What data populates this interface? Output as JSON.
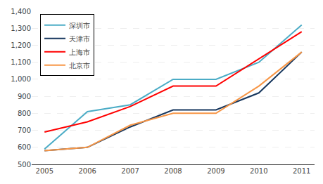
{
  "chart_data": {
    "type": "line",
    "x": [
      2005,
      2006,
      2007,
      2008,
      2009,
      2010,
      2011
    ],
    "series": [
      {
        "name": "深圳市",
        "color": "#4BACC6",
        "values": [
          590,
          810,
          850,
          1000,
          1000,
          1100,
          1320
        ]
      },
      {
        "name": "天津市",
        "color": "#17375E",
        "values": [
          580,
          600,
          720,
          820,
          820,
          920,
          1160
        ]
      },
      {
        "name": "上海市",
        "color": "#FF0000",
        "values": [
          690,
          750,
          840,
          960,
          960,
          1120,
          1280
        ]
      },
      {
        "name": "北京市",
        "color": "#F79646",
        "values": [
          580,
          600,
          730,
          800,
          800,
          960,
          1160
        ]
      }
    ],
    "xlim": [
      2004.7,
      2011.3
    ],
    "xticks": [
      2005,
      2006,
      2007,
      2008,
      2009,
      2010,
      2011
    ],
    "ylim": [
      500,
      1400
    ],
    "yticks": [
      500,
      600,
      700,
      800,
      900,
      {
        "value": 1000,
        "label": "1,000"
      },
      {
        "value": 1100,
        "label": "1,100"
      },
      {
        "value": 1200,
        "label": "1,200"
      },
      {
        "value": 1300,
        "label": "1,300"
      },
      {
        "value": 1400,
        "label": "1,400"
      }
    ],
    "grid": true,
    "legend": "upper left"
  }
}
